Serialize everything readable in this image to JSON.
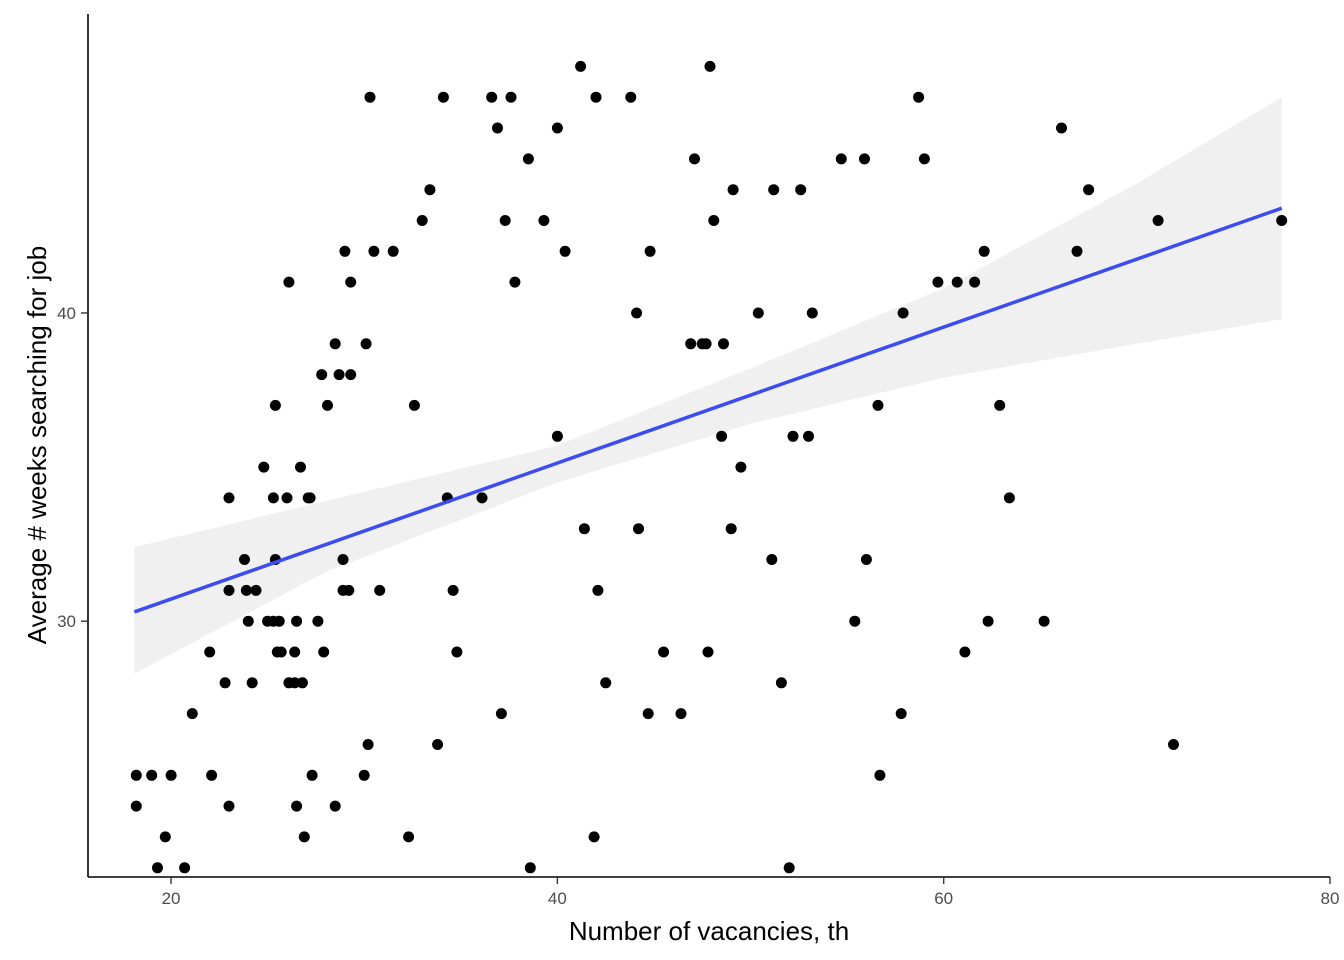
{
  "chart_data": {
    "type": "scatter",
    "xlabel": "Number of vacancies, th",
    "ylabel": "Average # weeks searching for job",
    "xlim": [
      15.7,
      80
    ],
    "ylim": [
      21.7,
      49.7
    ],
    "x_ticks": [
      20,
      40,
      60,
      80
    ],
    "y_ticks": [
      30,
      40
    ],
    "grid": false,
    "legend": "none",
    "colors": {
      "points": "#000000",
      "fit_line": "#3b4cf0",
      "ribbon": "#f0f0f0"
    },
    "fit": {
      "method": "linear",
      "x_range": [
        18.1,
        77.5
      ],
      "y_start": 30.3,
      "y_end": 43.4,
      "ci_at_x": [
        18.1,
        28,
        40,
        50,
        60,
        70,
        77.5
      ],
      "ci_lower": [
        28.3,
        31.6,
        34.5,
        36.4,
        37.9,
        39.0,
        39.8
      ],
      "ci_upper": [
        32.4,
        33.9,
        35.7,
        38.2,
        40.8,
        44.2,
        47.0
      ]
    },
    "points": [
      [
        18.2,
        25
      ],
      [
        18.2,
        24
      ],
      [
        19.0,
        25
      ],
      [
        19.3,
        22
      ],
      [
        19.7,
        23
      ],
      [
        20.0,
        25
      ],
      [
        20.7,
        22
      ],
      [
        21.1,
        27
      ],
      [
        22.0,
        29
      ],
      [
        22.1,
        25
      ],
      [
        22.8,
        28
      ],
      [
        23.0,
        24
      ],
      [
        23.0,
        31
      ],
      [
        23.0,
        34
      ],
      [
        23.8,
        32
      ],
      [
        23.9,
        31
      ],
      [
        24.0,
        30
      ],
      [
        24.2,
        28
      ],
      [
        24.4,
        31
      ],
      [
        24.8,
        35
      ],
      [
        25.0,
        30
      ],
      [
        25.3,
        30
      ],
      [
        25.3,
        34
      ],
      [
        25.4,
        37
      ],
      [
        25.4,
        32
      ],
      [
        25.5,
        29
      ],
      [
        25.6,
        30
      ],
      [
        25.7,
        29
      ],
      [
        26.0,
        34
      ],
      [
        26.1,
        41
      ],
      [
        26.1,
        28
      ],
      [
        26.4,
        29
      ],
      [
        26.4,
        28
      ],
      [
        26.5,
        30
      ],
      [
        26.5,
        24
      ],
      [
        26.7,
        35
      ],
      [
        26.8,
        28
      ],
      [
        26.9,
        23
      ],
      [
        27.1,
        34
      ],
      [
        27.2,
        34
      ],
      [
        27.3,
        25
      ],
      [
        27.6,
        30
      ],
      [
        27.8,
        38
      ],
      [
        27.9,
        29
      ],
      [
        28.1,
        37
      ],
      [
        28.5,
        24
      ],
      [
        28.5,
        39
      ],
      [
        28.7,
        38
      ],
      [
        28.9,
        32
      ],
      [
        28.9,
        31
      ],
      [
        29.0,
        42
      ],
      [
        29.2,
        31
      ],
      [
        29.3,
        38
      ],
      [
        29.3,
        41
      ],
      [
        30.0,
        25
      ],
      [
        30.1,
        39
      ],
      [
        30.2,
        26
      ],
      [
        30.3,
        47
      ],
      [
        30.5,
        42
      ],
      [
        30.8,
        31
      ],
      [
        31.5,
        42
      ],
      [
        32.3,
        23
      ],
      [
        32.6,
        37
      ],
      [
        33.0,
        43
      ],
      [
        33.4,
        44
      ],
      [
        33.8,
        26
      ],
      [
        34.1,
        47
      ],
      [
        34.3,
        34
      ],
      [
        34.6,
        31
      ],
      [
        34.8,
        29
      ],
      [
        36.1,
        34
      ],
      [
        36.6,
        47
      ],
      [
        36.9,
        46
      ],
      [
        37.1,
        27
      ],
      [
        37.3,
        43
      ],
      [
        37.6,
        47
      ],
      [
        37.8,
        41
      ],
      [
        38.5,
        45
      ],
      [
        38.6,
        22
      ],
      [
        39.3,
        43
      ],
      [
        40.0,
        36
      ],
      [
        40.0,
        46
      ],
      [
        40.4,
        42
      ],
      [
        41.2,
        48
      ],
      [
        41.4,
        33
      ],
      [
        41.9,
        23
      ],
      [
        42.0,
        47
      ],
      [
        42.1,
        31
      ],
      [
        42.5,
        28
      ],
      [
        43.8,
        47
      ],
      [
        44.1,
        40
      ],
      [
        44.2,
        33
      ],
      [
        44.7,
        27
      ],
      [
        44.8,
        42
      ],
      [
        45.5,
        29
      ],
      [
        46.4,
        27
      ],
      [
        46.9,
        39
      ],
      [
        47.1,
        45
      ],
      [
        47.5,
        39
      ],
      [
        47.7,
        39
      ],
      [
        47.8,
        29
      ],
      [
        47.9,
        48
      ],
      [
        48.1,
        43
      ],
      [
        48.5,
        36
      ],
      [
        48.6,
        39
      ],
      [
        49.0,
        33
      ],
      [
        49.1,
        44
      ],
      [
        49.5,
        35
      ],
      [
        50.4,
        40
      ],
      [
        51.1,
        32
      ],
      [
        51.2,
        44
      ],
      [
        51.6,
        28
      ],
      [
        52.0,
        22
      ],
      [
        52.2,
        36
      ],
      [
        52.6,
        44
      ],
      [
        53.0,
        36
      ],
      [
        53.2,
        40
      ],
      [
        54.7,
        45
      ],
      [
        55.4,
        30
      ],
      [
        55.9,
        45
      ],
      [
        56.0,
        32
      ],
      [
        56.6,
        37
      ],
      [
        56.7,
        25
      ],
      [
        57.8,
        27
      ],
      [
        57.9,
        40
      ],
      [
        58.7,
        47
      ],
      [
        59.0,
        45
      ],
      [
        59.7,
        41
      ],
      [
        60.7,
        41
      ],
      [
        61.1,
        29
      ],
      [
        61.6,
        41
      ],
      [
        62.1,
        42
      ],
      [
        62.3,
        30
      ],
      [
        62.9,
        37
      ],
      [
        63.4,
        34
      ],
      [
        65.2,
        30
      ],
      [
        66.1,
        46
      ],
      [
        66.9,
        42
      ],
      [
        67.5,
        44
      ],
      [
        71.1,
        43
      ],
      [
        71.9,
        26
      ],
      [
        77.5,
        43
      ]
    ]
  }
}
